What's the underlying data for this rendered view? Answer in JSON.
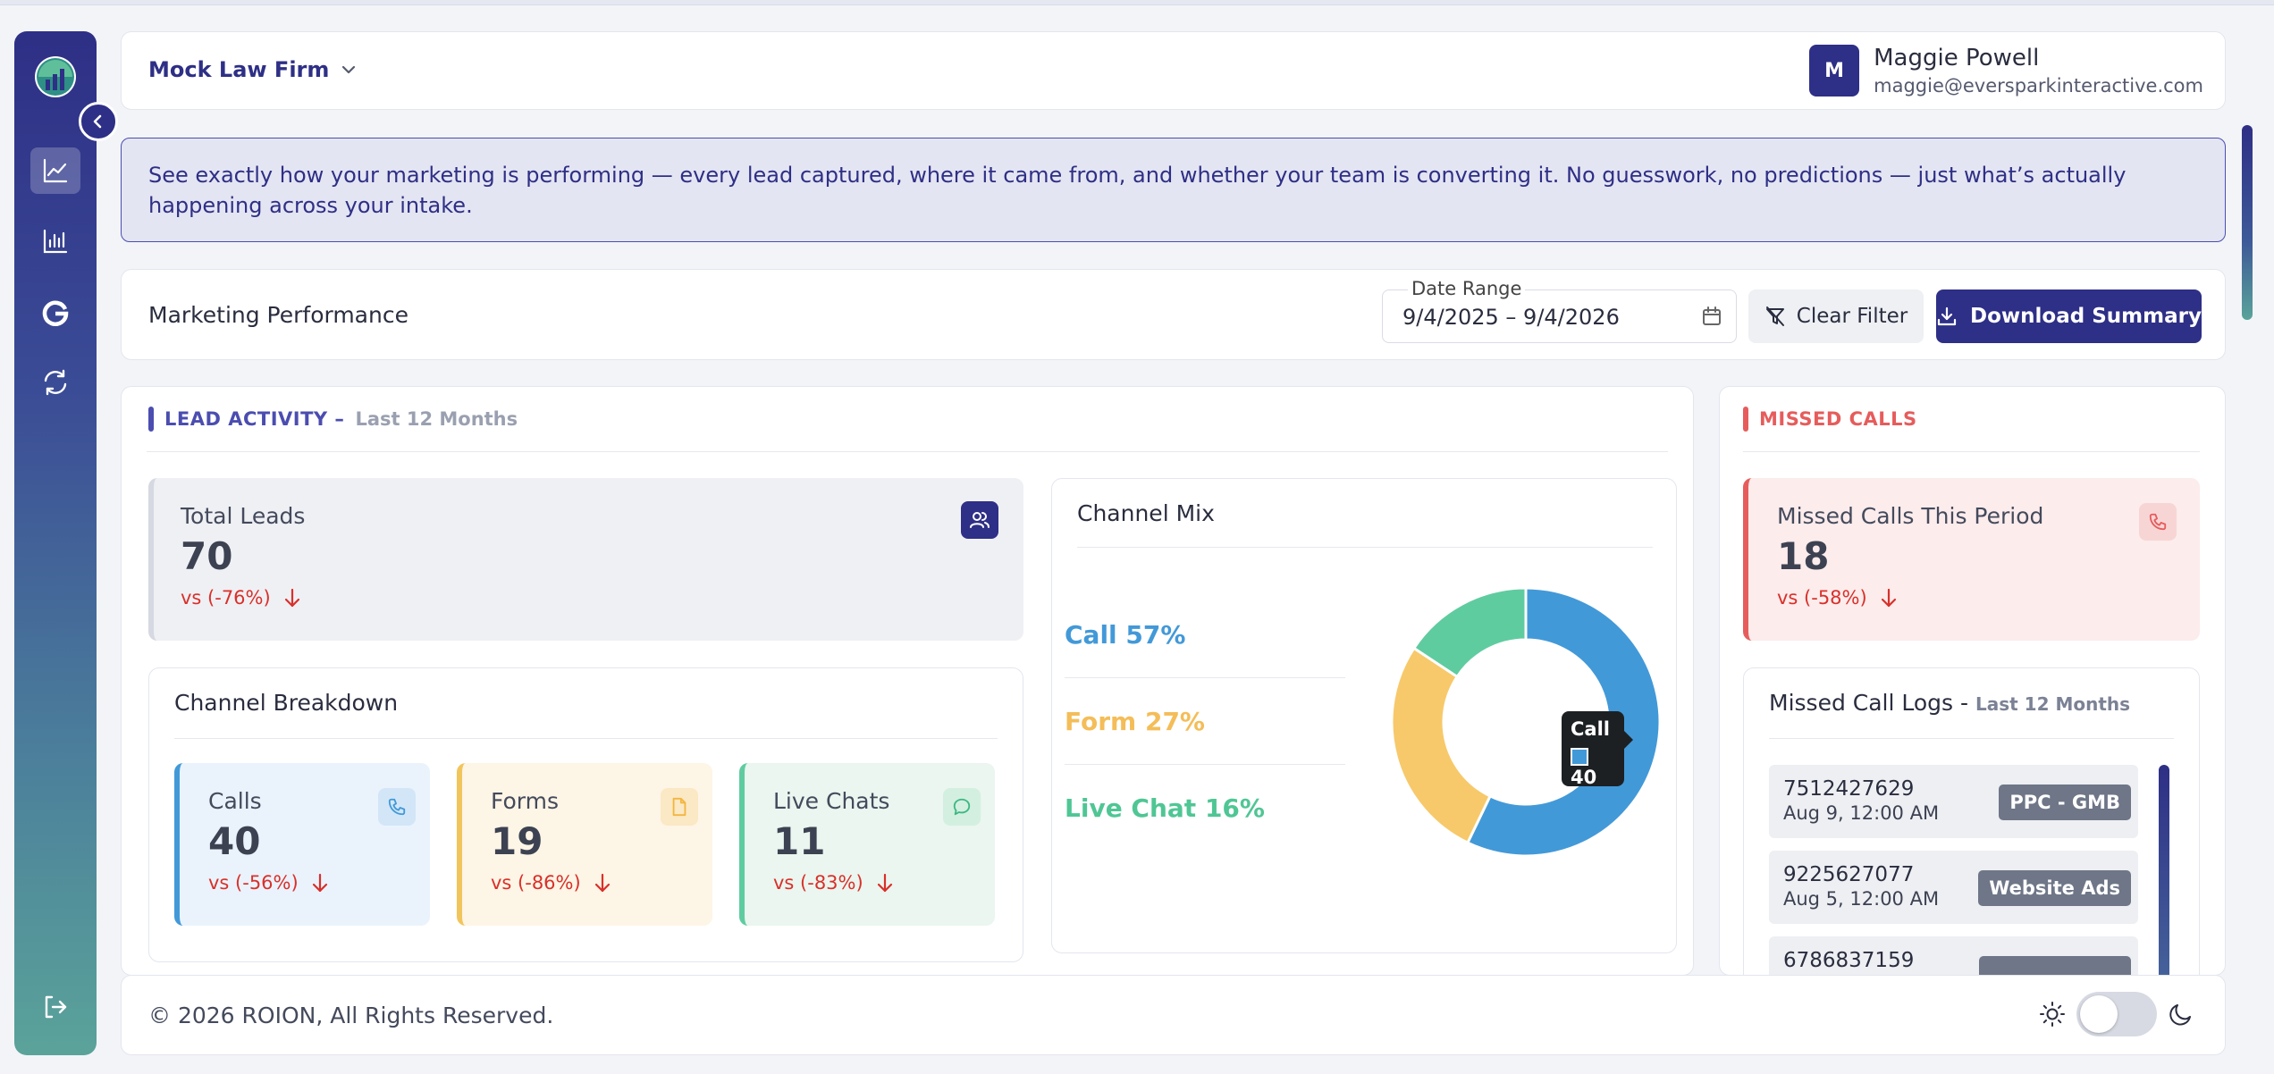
{
  "header": {
    "firm_name": "Mock Law Firm",
    "user": {
      "initial": "M",
      "name": "Maggie Powell",
      "email": "maggie@eversparkinteractive.com"
    }
  },
  "banner": {
    "text": "See exactly how your marketing is performing — every lead captured, where it came from, and whether your team is converting it. No guesswork, no predictions — just what’s actually happening across your intake."
  },
  "performance": {
    "title": "Marketing Performance",
    "date_range_label": "Date Range",
    "date_range_value": "9/4/2025 – 9/4/2026",
    "clear_filter_label": "Clear Filter",
    "download_label": "Download Summary"
  },
  "lead_activity": {
    "title": "LEAD ACTIVITY –",
    "period": "Last 12 Months",
    "total": {
      "label": "Total Leads",
      "value": "70",
      "delta": "vs (-76%)"
    },
    "breakdown": {
      "title": "Channel Breakdown",
      "channels": [
        {
          "label": "Calls",
          "value": "40",
          "delta": "vs (-56%)"
        },
        {
          "label": "Forms",
          "value": "19",
          "delta": "vs (-86%)"
        },
        {
          "label": "Live Chats",
          "value": "11",
          "delta": "vs (-83%)"
        }
      ]
    },
    "mix": {
      "title": "Channel Mix",
      "legend": [
        "Call 57%",
        "Form 27%",
        "Live Chat 16%"
      ],
      "tooltip": {
        "title": "Call",
        "value": "40"
      }
    }
  },
  "chart_data": {
    "type": "pie",
    "categories": [
      "Call",
      "Form",
      "Live Chat"
    ],
    "values": [
      40,
      19,
      11
    ],
    "percents": [
      57,
      27,
      16
    ],
    "colors": [
      "#4299d8",
      "#f7c96a",
      "#5fcca0"
    ],
    "title": "Channel Mix"
  },
  "missed_calls": {
    "title": "MISSED CALLS",
    "kpi": {
      "label": "Missed Calls This Period",
      "value": "18",
      "delta": "vs (-58%)"
    },
    "logs_title": "Missed Call Logs -",
    "logs_period": "Last 12 Months",
    "logs": [
      {
        "number": "7512427629",
        "date": "Aug 9, 12:00 AM",
        "source": "PPC - GMB"
      },
      {
        "number": "9225627077",
        "date": "Aug 5, 12:00 AM",
        "source": "Website Ads"
      },
      {
        "number": "6786837159",
        "date": "",
        "source": ""
      }
    ]
  },
  "footer": {
    "copyright": "© 2026 ROION, All Rights Reserved."
  },
  "colors": {
    "primary": "#2e2f86",
    "call": "#4299d8",
    "form": "#f7c96a",
    "chat": "#5fcca0",
    "negative": "#d9302a",
    "missed": "#e65c5c"
  }
}
